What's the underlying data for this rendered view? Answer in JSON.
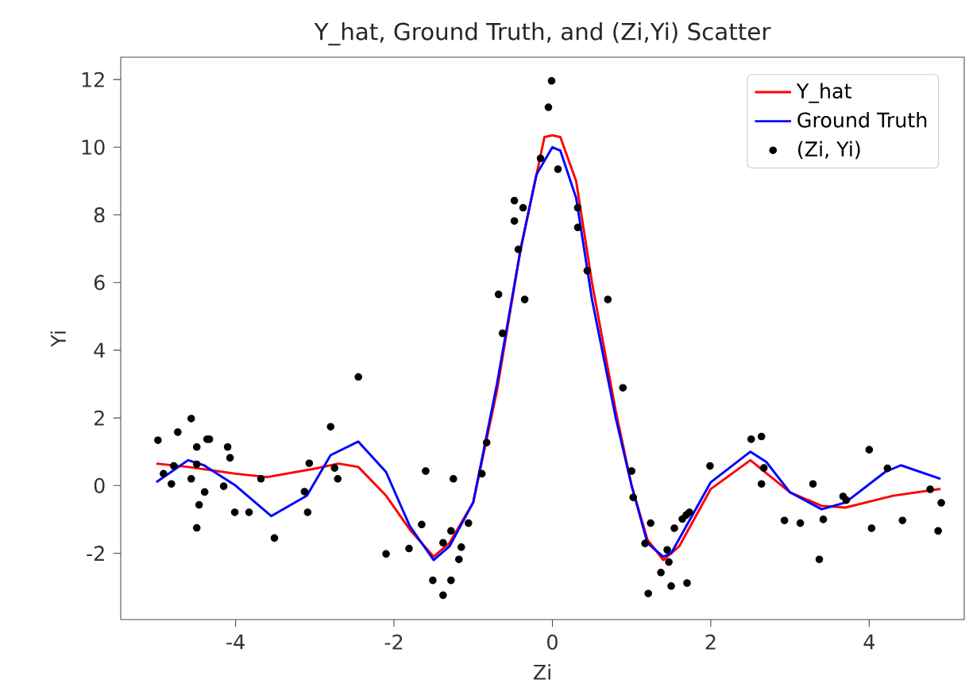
{
  "chart_data": {
    "type": "line",
    "title": "Y_hat, Ground Truth, and (Zi,Yi) Scatter",
    "xlabel": "Zi",
    "ylabel": "Yi",
    "xlim": [
      -5.45,
      5.2
    ],
    "ylim": [
      -3.96,
      12.66
    ],
    "xticks": [
      -4,
      -2,
      0,
      2,
      4
    ],
    "yticks": [
      -2,
      0,
      2,
      4,
      6,
      8,
      10,
      12
    ],
    "legend": "top right",
    "series": [
      {
        "name": "Y_hat",
        "color": "#ff0000",
        "x": [
          -5,
          -4.6,
          -4,
          -3.6,
          -3.0,
          -2.7,
          -2.45,
          -2.1,
          -1.8,
          -1.5,
          -1.3,
          -1,
          -0.7,
          -0.4,
          -0.1,
          0,
          0.1,
          0.3,
          0.5,
          0.8,
          1.0,
          1.2,
          1.4,
          1.6,
          2.0,
          2.5,
          3.0,
          3.4,
          3.7,
          4.3,
          4.9
        ],
        "values": [
          0.65,
          0.55,
          0.35,
          0.25,
          0.5,
          0.65,
          0.55,
          -0.3,
          -1.3,
          -2.1,
          -1.7,
          -0.5,
          2.8,
          7,
          10.3,
          10.35,
          10.3,
          9,
          6,
          2.2,
          0,
          -1.6,
          -2.2,
          -1.8,
          -0.1,
          0.75,
          -0.2,
          -0.6,
          -0.65,
          -0.3,
          -0.1
        ]
      },
      {
        "name": "Ground Truth",
        "color": "#0000ff",
        "x": [
          -5,
          -4.6,
          -4.4,
          -4,
          -3.55,
          -3.1,
          -2.8,
          -2.45,
          -2.1,
          -1.8,
          -1.5,
          -1.3,
          -1,
          -0.7,
          -0.4,
          -0.2,
          0,
          0.1,
          0.3,
          0.5,
          0.8,
          1.0,
          1.2,
          1.4,
          1.5,
          2.0,
          2.5,
          2.7,
          3.0,
          3.4,
          3.7,
          4.2,
          4.4,
          4.9
        ],
        "values": [
          0.1,
          0.75,
          0.6,
          0,
          -0.9,
          -0.3,
          0.9,
          1.3,
          0.4,
          -1.2,
          -2.2,
          -1.8,
          -0.5,
          3,
          7,
          9.2,
          10,
          9.9,
          8.5,
          5.5,
          2,
          0,
          -1.7,
          -2.1,
          -2.0,
          0.1,
          1.0,
          0.7,
          -0.2,
          -0.7,
          -0.5,
          0.4,
          0.6,
          0.2
        ]
      },
      {
        "name": "(Zi, Yi)",
        "color": "#000000",
        "type": "scatter",
        "marker": "circle",
        "x": [
          -4.98,
          -4.91,
          -4.81,
          -4.78,
          -4.73,
          -4.56,
          -4.56,
          -4.49,
          -4.49,
          -4.46,
          -4.49,
          -4.39,
          -4.36,
          -4.33,
          -4.15,
          -4.1,
          -4.07,
          -4.01,
          -3.83,
          -3.68,
          -3.51,
          -3.13,
          -3.09,
          -3.07,
          -2.8,
          -2.75,
          -2.71,
          -2.45,
          -2.1,
          -1.81,
          -1.6,
          -1.65,
          -1.51,
          -1.38,
          -1.28,
          -1.25,
          -1.28,
          -1.38,
          -1.15,
          -1.18,
          -1.06,
          -0.89,
          -0.83,
          -0.63,
          0.89,
          1.0,
          1.02,
          1.24,
          1.17,
          1.37,
          1.21,
          -0.01,
          -0.05,
          -0.15,
          0.07,
          -0.48,
          -0.37,
          -0.48,
          0.32,
          0.32,
          -0.43,
          0.44,
          -0.68,
          -0.35,
          0.7,
          1.45,
          1.47,
          1.54,
          1.64,
          1.69,
          1.73,
          1.5,
          1.7,
          1.99,
          2.51,
          2.64,
          2.67,
          2.64,
          2.93,
          3.13,
          3.29,
          3.67,
          3.71,
          3.42,
          3.37,
          4.0,
          4.23,
          4.03,
          4.42,
          4.77,
          4.91,
          4.87
        ],
        "values": [
          1.34,
          0.35,
          0.05,
          0.58,
          1.58,
          1.98,
          0.2,
          1.14,
          0.63,
          -0.57,
          -1.25,
          -0.19,
          1.37,
          1.37,
          -0.02,
          1.14,
          0.82,
          -0.79,
          -0.79,
          0.2,
          -1.55,
          -0.18,
          -0.79,
          0.66,
          1.74,
          0.52,
          0.2,
          3.21,
          -2.02,
          -1.86,
          0.43,
          -1.15,
          -2.8,
          -3.24,
          -2.8,
          0.2,
          -1.34,
          -1.69,
          -1.82,
          -2.18,
          -1.11,
          0.35,
          1.27,
          4.5,
          2.89,
          0.43,
          -0.35,
          -1.11,
          -1.71,
          -2.57,
          -3.19,
          11.96,
          11.18,
          9.67,
          9.35,
          8.42,
          8.21,
          7.82,
          8.21,
          7.63,
          6.98,
          6.35,
          5.65,
          5.5,
          5.5,
          -1.9,
          -2.26,
          -1.26,
          -0.99,
          -0.87,
          -0.79,
          -2.97,
          -2.88,
          0.58,
          1.37,
          1.45,
          0.52,
          0.05,
          -1.03,
          -1.11,
          0.05,
          -0.32,
          -0.43,
          -1.0,
          -2.18,
          1.06,
          0.51,
          -1.26,
          -1.03,
          -0.11,
          -0.51,
          -1.34
        ]
      }
    ]
  }
}
